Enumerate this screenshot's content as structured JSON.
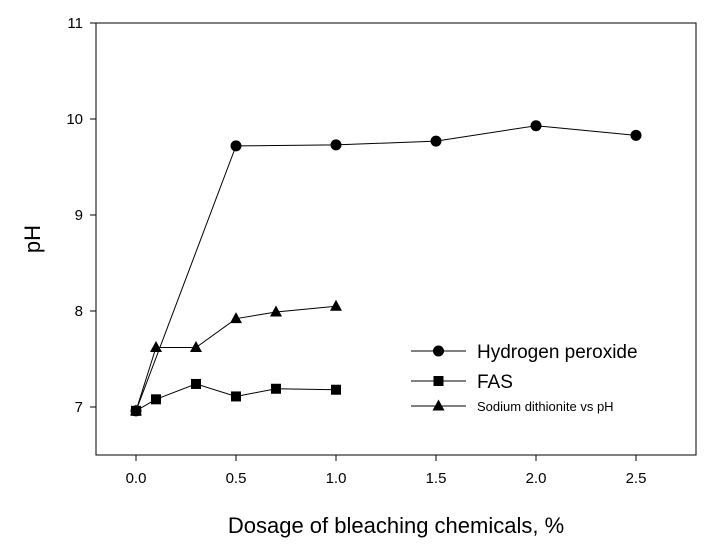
{
  "chart_data": {
    "type": "line",
    "xlabel": "Dosage of bleaching chemicals, %",
    "ylabel": "pH",
    "xlim": [
      -0.2,
      2.8
    ],
    "ylim": [
      6.5,
      11
    ],
    "x_ticks": [
      "0.0",
      "0.5",
      "1.0",
      "1.5",
      "2.0",
      "2.5"
    ],
    "y_ticks": [
      "7",
      "8",
      "9",
      "10",
      "11"
    ],
    "grid": false,
    "legend_position": "lower-right",
    "series": [
      {
        "name": "Hydrogen peroxide",
        "marker": "circle",
        "color": "#000000",
        "x": [
          0,
          0.5,
          1.0,
          1.5,
          2.0,
          2.5
        ],
        "y": [
          6.96,
          9.72,
          9.73,
          9.77,
          9.93,
          9.83
        ]
      },
      {
        "name": "FAS",
        "marker": "square",
        "color": "#000000",
        "x": [
          0,
          0.1,
          0.3,
          0.5,
          0.7,
          1.0
        ],
        "y": [
          6.96,
          7.08,
          7.24,
          7.11,
          7.19,
          7.18
        ]
      },
      {
        "name": "Sodium dithionite vs pH",
        "marker": "triangle",
        "color": "#000000",
        "x": [
          0,
          0.1,
          0.3,
          0.5,
          0.7,
          1.0
        ],
        "y": [
          6.96,
          7.62,
          7.62,
          7.92,
          7.99,
          8.05
        ]
      }
    ]
  }
}
